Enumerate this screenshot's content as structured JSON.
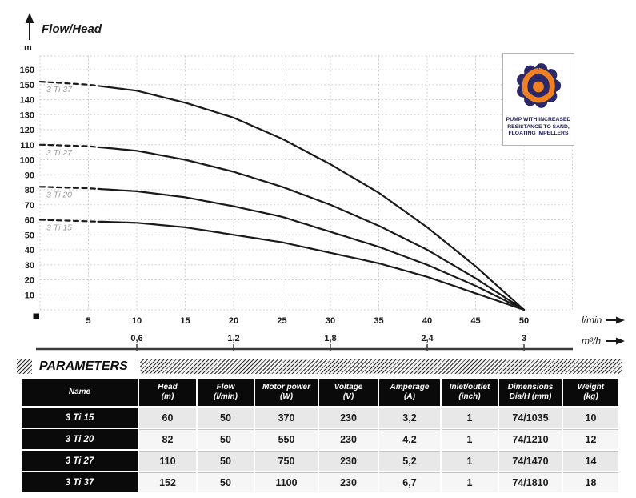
{
  "chart_data": {
    "type": "line",
    "title": "Flow/Head",
    "ylabel": "m",
    "xlabel_primary": "l/min",
    "xlabel_secondary": "m³/h",
    "xlim_lmin": [
      0,
      55
    ],
    "ylim_m": [
      0,
      169
    ],
    "grid": true,
    "legend_position": "labels-at-curve-start",
    "y_ticks": [
      10,
      20,
      30,
      40,
      50,
      60,
      70,
      80,
      90,
      100,
      110,
      120,
      130,
      140,
      150,
      160
    ],
    "x_ticks_lmin": [
      5,
      10,
      15,
      20,
      25,
      30,
      35,
      40,
      45,
      50
    ],
    "x_ticks_m3h": [
      {
        "label": "0,6",
        "lmin": 10
      },
      {
        "label": "1,2",
        "lmin": 20
      },
      {
        "label": "1,8",
        "lmin": 30
      },
      {
        "label": "2,4",
        "lmin": 40
      },
      {
        "label": "3",
        "lmin": 50
      }
    ],
    "dashed_until_lmin": 6,
    "series": [
      {
        "name": "3 Ti 37",
        "x": [
          0,
          5,
          10,
          15,
          20,
          25,
          30,
          35,
          40,
          45,
          50
        ],
        "y": [
          152,
          150,
          146,
          138,
          128,
          114,
          97,
          78,
          55,
          29,
          0
        ]
      },
      {
        "name": "3 Ti 27",
        "x": [
          0,
          5,
          10,
          15,
          20,
          25,
          30,
          35,
          40,
          45,
          50
        ],
        "y": [
          110,
          109,
          106,
          100,
          92,
          82,
          70,
          56,
          40,
          21,
          0
        ]
      },
      {
        "name": "3 Ti 20",
        "x": [
          0,
          5,
          10,
          15,
          20,
          25,
          30,
          35,
          40,
          45,
          50
        ],
        "y": [
          82,
          81,
          79,
          75,
          69,
          62,
          52,
          42,
          30,
          16,
          0
        ]
      },
      {
        "name": "3 Ti 15",
        "x": [
          0,
          5,
          10,
          15,
          20,
          25,
          30,
          35,
          40,
          45,
          50
        ],
        "y": [
          60,
          59,
          58,
          55,
          50,
          45,
          38,
          31,
          22,
          11,
          0
        ]
      }
    ]
  },
  "badge": {
    "lines": [
      "PUMP WITH INCREASED",
      "RESISTANCE TO SAND,",
      "FLOATING IMPELLERS"
    ],
    "navy": "#2b2968",
    "orange": "#ef8122"
  },
  "parameters": {
    "title": "PARAMETERS",
    "columns": [
      {
        "label": "Name",
        "unit": ""
      },
      {
        "label": "Head",
        "unit": "(m)"
      },
      {
        "label": "Flow",
        "unit": "(l/min)"
      },
      {
        "label": "Motor power",
        "unit": "(W)"
      },
      {
        "label": "Voltage",
        "unit": "(V)"
      },
      {
        "label": "Amperage",
        "unit": "(A)"
      },
      {
        "label": "Inlet/outlet",
        "unit": "(inch)"
      },
      {
        "label": "Dimensions",
        "unit": "Dia/H (mm)"
      },
      {
        "label": "Weight",
        "unit": "(kg)"
      }
    ],
    "rows": [
      {
        "name": "3 Ti 15",
        "values": [
          "60",
          "50",
          "370",
          "230",
          "3,2",
          "1",
          "74/1035",
          "10"
        ]
      },
      {
        "name": "3 Ti 20",
        "values": [
          "82",
          "50",
          "550",
          "230",
          "4,2",
          "1",
          "74/1210",
          "12"
        ]
      },
      {
        "name": "3 Ti 27",
        "values": [
          "110",
          "50",
          "750",
          "230",
          "5,2",
          "1",
          "74/1470",
          "14"
        ]
      },
      {
        "name": "3 Ti 37",
        "values": [
          "152",
          "50",
          "1100",
          "230",
          "6,7",
          "1",
          "74/1810",
          "18"
        ]
      }
    ]
  },
  "colors": {
    "curve": "#1a1a1a",
    "grid": "#c9c9c9",
    "curve_label": "#9b9b9b",
    "axis_line": "#3c3c3c",
    "table_header_bg": "#0a0a0a",
    "row_dark": "#e8e8e8",
    "row_light": "#f6f6f6"
  }
}
